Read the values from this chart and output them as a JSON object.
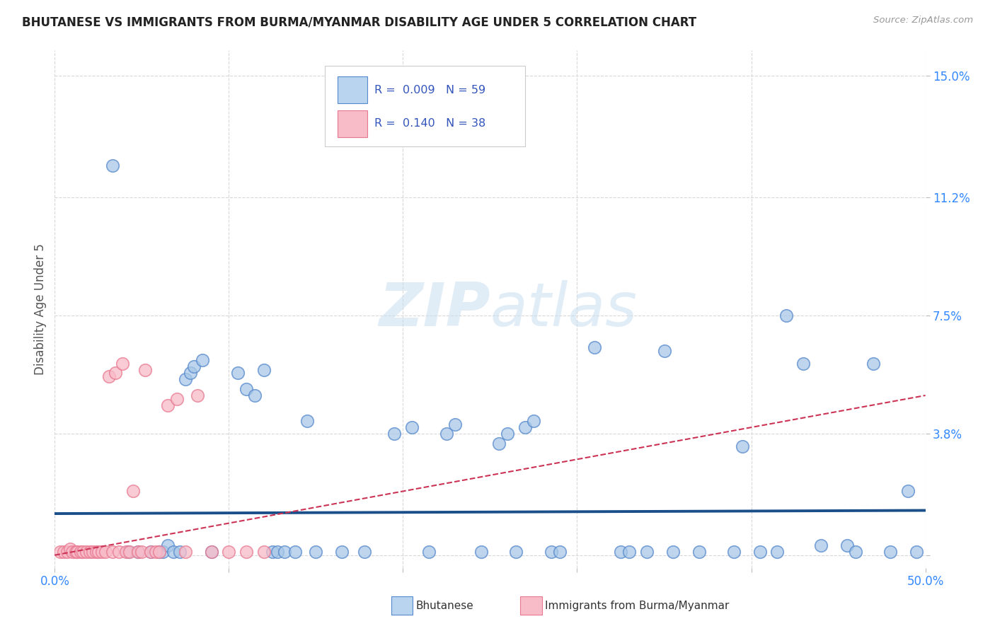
{
  "title": "BHUTANESE VS IMMIGRANTS FROM BURMA/MYANMAR DISABILITY AGE UNDER 5 CORRELATION CHART",
  "source": "Source: ZipAtlas.com",
  "ylabel": "Disability Age Under 5",
  "xlim": [
    0.0,
    0.5
  ],
  "ylim": [
    -0.004,
    0.158
  ],
  "ytick_positions": [
    0.0,
    0.038,
    0.075,
    0.112,
    0.15
  ],
  "ytick_labels": [
    "",
    "3.8%",
    "7.5%",
    "11.2%",
    "15.0%"
  ],
  "xtick_positions": [
    0.0,
    0.1,
    0.2,
    0.3,
    0.4,
    0.5
  ],
  "xtick_labels": [
    "0.0%",
    "",
    "",
    "",
    "",
    "50.0%"
  ],
  "blue_scatter_x": [
    0.033,
    0.042,
    0.048,
    0.055,
    0.06,
    0.062,
    0.065,
    0.068,
    0.072,
    0.075,
    0.078,
    0.08,
    0.085,
    0.09,
    0.105,
    0.11,
    0.115,
    0.12,
    0.125,
    0.128,
    0.132,
    0.138,
    0.145,
    0.15,
    0.165,
    0.178,
    0.195,
    0.205,
    0.215,
    0.225,
    0.23,
    0.245,
    0.255,
    0.26,
    0.265,
    0.27,
    0.275,
    0.285,
    0.29,
    0.31,
    0.325,
    0.33,
    0.34,
    0.35,
    0.355,
    0.37,
    0.39,
    0.395,
    0.405,
    0.415,
    0.42,
    0.43,
    0.44,
    0.455,
    0.46,
    0.47,
    0.48,
    0.49,
    0.495
  ],
  "blue_scatter_y": [
    0.122,
    0.001,
    0.001,
    0.001,
    0.001,
    0.001,
    0.003,
    0.001,
    0.001,
    0.055,
    0.057,
    0.059,
    0.061,
    0.001,
    0.057,
    0.052,
    0.05,
    0.058,
    0.001,
    0.001,
    0.001,
    0.001,
    0.042,
    0.001,
    0.001,
    0.001,
    0.038,
    0.04,
    0.001,
    0.038,
    0.041,
    0.001,
    0.035,
    0.038,
    0.001,
    0.04,
    0.042,
    0.001,
    0.001,
    0.065,
    0.001,
    0.001,
    0.001,
    0.064,
    0.001,
    0.001,
    0.001,
    0.034,
    0.001,
    0.001,
    0.075,
    0.06,
    0.003,
    0.003,
    0.001,
    0.06,
    0.001,
    0.02,
    0.001
  ],
  "pink_scatter_x": [
    0.003,
    0.005,
    0.007,
    0.009,
    0.01,
    0.012,
    0.013,
    0.015,
    0.016,
    0.018,
    0.02,
    0.022,
    0.024,
    0.025,
    0.027,
    0.029,
    0.031,
    0.033,
    0.035,
    0.037,
    0.039,
    0.041,
    0.043,
    0.045,
    0.048,
    0.05,
    0.052,
    0.055,
    0.058,
    0.06,
    0.065,
    0.07,
    0.075,
    0.082,
    0.09,
    0.1,
    0.11,
    0.12
  ],
  "pink_scatter_y": [
    0.001,
    0.001,
    0.001,
    0.002,
    0.001,
    0.001,
    0.001,
    0.001,
    0.001,
    0.001,
    0.001,
    0.001,
    0.001,
    0.001,
    0.001,
    0.001,
    0.056,
    0.001,
    0.057,
    0.001,
    0.06,
    0.001,
    0.001,
    0.02,
    0.001,
    0.001,
    0.058,
    0.001,
    0.001,
    0.001,
    0.047,
    0.049,
    0.001,
    0.05,
    0.001,
    0.001,
    0.001,
    0.001
  ],
  "blue_line_x": [
    0.0,
    0.5
  ],
  "blue_line_y": [
    0.013,
    0.014
  ],
  "pink_line_x": [
    0.0,
    0.5
  ],
  "pink_line_y": [
    0.0,
    0.05
  ],
  "blue_dot_color": "#a8c8e8",
  "blue_edge_color": "#5588cc",
  "pink_dot_color": "#f8bbc8",
  "pink_edge_color": "#e87890",
  "trend_blue_color": "#1a4f8a",
  "trend_pink_color": "#cc3355",
  "legend_blue_fill": "#b8d4ee",
  "legend_pink_fill": "#f8bbc8",
  "watermark_color": "#c8ddf0",
  "grid_color": "#d8d8d8",
  "bg_color": "#ffffff",
  "title_color": "#222222",
  "tick_color": "#3388ff",
  "ylabel_color": "#555555"
}
